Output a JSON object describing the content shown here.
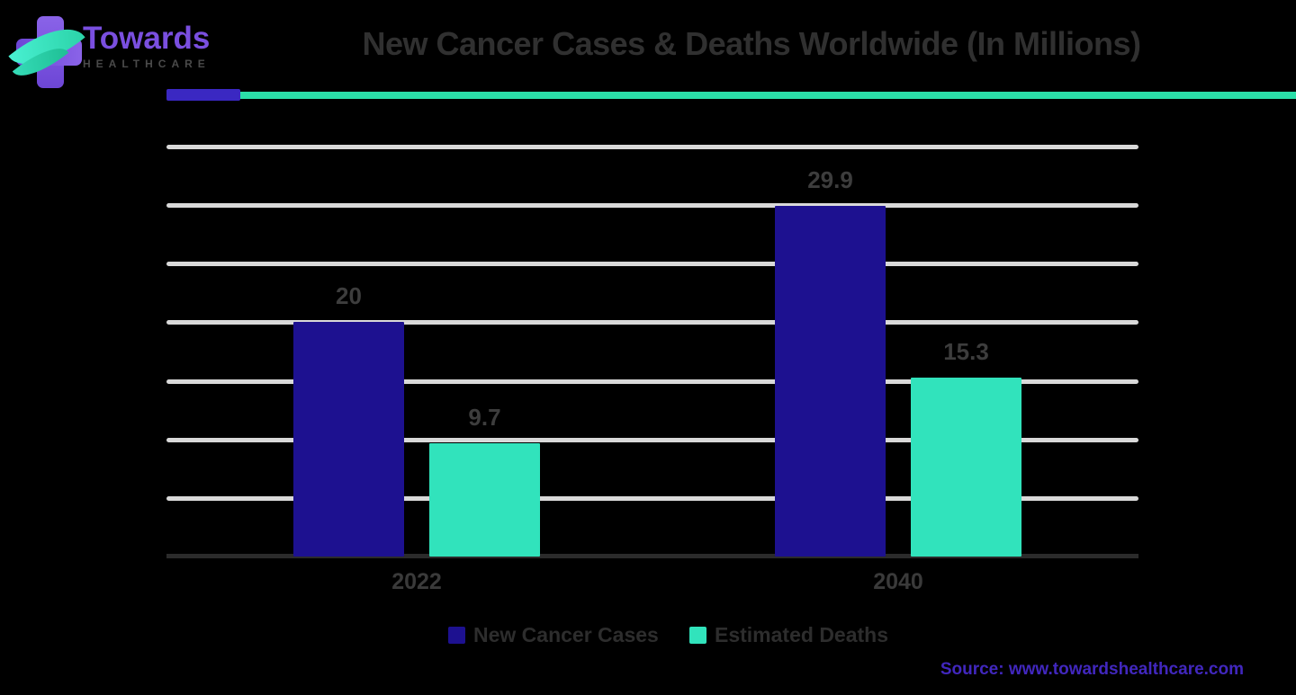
{
  "logo": {
    "brand": "Towards",
    "brand_sub": "HEALTHCARE"
  },
  "header": {
    "title": "New Cancer Cases & Deaths Worldwide (In Millions)"
  },
  "source": {
    "text": "Source: www.towardshealthcare.com"
  },
  "legend": [
    {
      "label": "New Cancer Cases",
      "color": "#1d1190"
    },
    {
      "label": "Estimated Deaths",
      "color": "#31e3bc"
    }
  ],
  "colors": {
    "navy": "#1d1190",
    "teal": "#31e3bc",
    "divider_indigo": "#3a28c2",
    "divider_teal": "#2bdfa9",
    "gridline": "#d9d9d9",
    "axis_line": "#2b2b2b",
    "source_text": "#4127be",
    "brand_purple": "#7a4fe0"
  },
  "chart_data": {
    "type": "bar",
    "title": "New Cancer Cases & Deaths Worldwide (In Millions)",
    "categories": [
      "2022",
      "2040"
    ],
    "series": [
      {
        "name": "New Cancer Cases",
        "color": "#1d1190",
        "values": [
          20,
          29.9
        ]
      },
      {
        "name": "Estimated Deaths",
        "color": "#31e3bc",
        "values": [
          9.7,
          15.3
        ]
      }
    ],
    "xlabel": "",
    "ylabel": "",
    "ylim": [
      0,
      35
    ],
    "grid_step": 5,
    "grid": true,
    "y_axis_labels_visible": false,
    "legend_position": "bottom"
  }
}
